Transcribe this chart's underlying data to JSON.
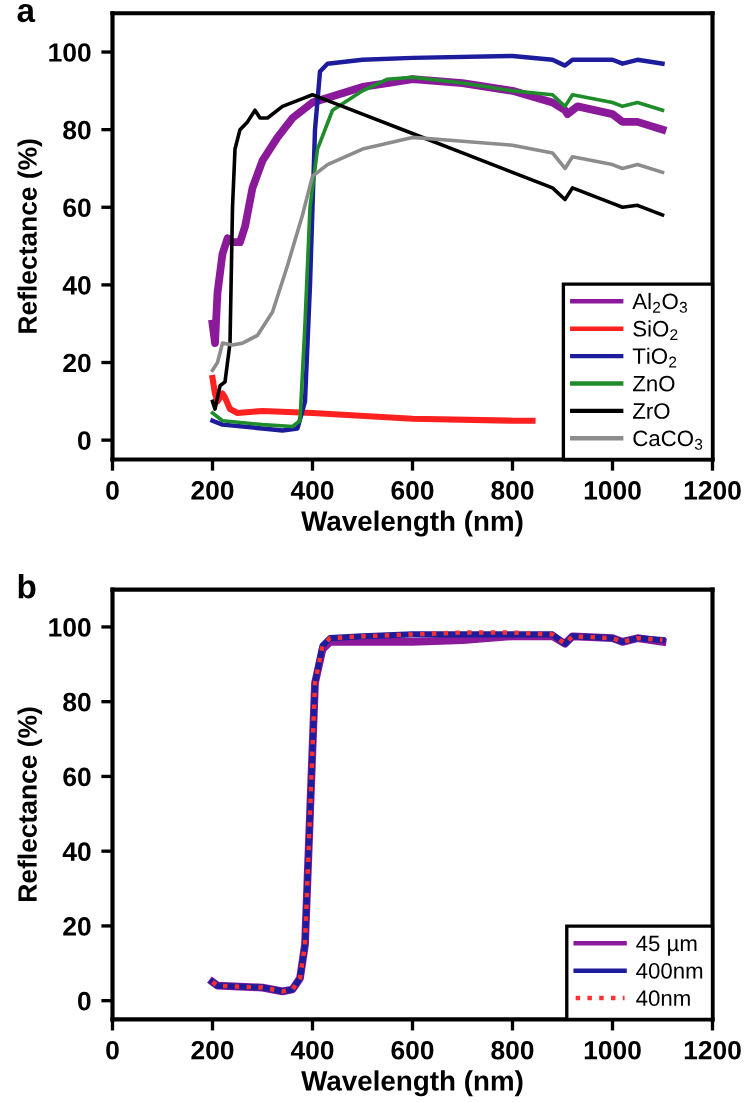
{
  "chart_data": [
    {
      "type": "line",
      "title": "a",
      "xlabel": "Wavelength (nm)",
      "ylabel": "Reflectance (%)",
      "xlim": [
        0,
        1200
      ],
      "ylim": [
        -5,
        110
      ],
      "xticks": [
        0,
        200,
        400,
        600,
        800,
        1000,
        1200
      ],
      "yticks": [
        0,
        20,
        40,
        60,
        80,
        100
      ],
      "grid": false,
      "legend": "bottom right",
      "series": [
        {
          "name": "Al$_{2}$O$_{3}$",
          "color": "#8b1a9b",
          "x": [
            200,
            205,
            210,
            220,
            230,
            240,
            255,
            265,
            280,
            300,
            330,
            360,
            400,
            450,
            500,
            550,
            600,
            700,
            800,
            880,
            905,
            910,
            930,
            1000,
            1020,
            1050,
            1100
          ],
          "values": [
            30,
            25,
            38,
            48,
            52,
            51,
            51,
            55,
            65,
            72,
            78,
            83,
            87,
            89,
            91,
            92,
            93,
            92,
            90,
            87,
            85,
            84,
            86,
            84,
            82,
            82,
            80
          ]
        },
        {
          "name": "SiO$_{2}$",
          "color": "#ff2020",
          "x": [
            200,
            205,
            210,
            220,
            225,
            235,
            250,
            300,
            400,
            600,
            800,
            840
          ],
          "values": [
            16,
            12,
            10,
            12,
            11,
            8,
            7,
            7.5,
            7,
            5.5,
            5,
            5
          ]
        },
        {
          "name": "TiO$_{2}$",
          "color": "#1c1c9c",
          "x": [
            200,
            220,
            300,
            340,
            370,
            385,
            395,
            405,
            415,
            430,
            500,
            600,
            800,
            880,
            905,
            920,
            1000,
            1020,
            1050,
            1100
          ],
          "values": [
            5,
            4,
            3,
            2.5,
            3,
            10,
            40,
            80,
            95,
            97,
            98,
            98.5,
            99,
            98,
            96.5,
            98,
            98,
            97,
            98,
            97
          ]
        },
        {
          "name": "ZnO",
          "color": "#1e8c2a",
          "x": [
            200,
            220,
            300,
            360,
            375,
            385,
            395,
            410,
            440,
            500,
            550,
            600,
            700,
            800,
            880,
            905,
            920,
            1000,
            1020,
            1050,
            1100
          ],
          "values": [
            7,
            5,
            4,
            3.5,
            5,
            30,
            60,
            75,
            85,
            90,
            93,
            93.5,
            92,
            90,
            89,
            86,
            89,
            87,
            86,
            87,
            85
          ]
        },
        {
          "name": "ZrO",
          "color": "#000000",
          "x": [
            200,
            205,
            215,
            225,
            235,
            240,
            245,
            255,
            270,
            285,
            295,
            310,
            340,
            380,
            400,
            420,
            500,
            600,
            700,
            800,
            880,
            905,
            920,
            1000,
            1020,
            1050,
            1100
          ],
          "values": [
            10,
            8,
            14,
            15,
            25,
            60,
            75,
            80,
            82,
            85,
            83,
            83,
            86,
            88,
            89,
            88,
            84,
            79,
            74,
            69,
            65,
            62,
            65,
            61,
            60,
            60.5,
            58
          ]
        },
        {
          "name": "CaCO$_{3}$",
          "color": "#8c8c8c",
          "x": [
            200,
            210,
            220,
            240,
            260,
            290,
            320,
            350,
            380,
            400,
            430,
            500,
            600,
            700,
            800,
            880,
            905,
            920,
            1000,
            1020,
            1050,
            1100
          ],
          "values": [
            18,
            20,
            25,
            24.5,
            25,
            27,
            33,
            45,
            58,
            68,
            71,
            75,
            78,
            77,
            76,
            74,
            70,
            73,
            71,
            70,
            71,
            69
          ]
        }
      ]
    },
    {
      "type": "line",
      "title": "b",
      "xlabel": "Wavelength (nm)",
      "ylabel": "Reflectance (%)",
      "xlim": [
        0,
        1200
      ],
      "ylim": [
        -5,
        110
      ],
      "xticks": [
        0,
        200,
        400,
        600,
        800,
        1000,
        1200
      ],
      "yticks": [
        0,
        20,
        40,
        60,
        80,
        100
      ],
      "grid": false,
      "legend": "bottom right",
      "series": [
        {
          "name": "45 µm",
          "color": "#8b1a9b",
          "line_style": "solid",
          "x": [
            200,
            210,
            300,
            340,
            360,
            375,
            385,
            395,
            405,
            420,
            435,
            500,
            600,
            700,
            800,
            880,
            905,
            920,
            1000,
            1020,
            1050,
            1100
          ],
          "values": [
            5,
            4,
            3.5,
            2.5,
            3,
            6,
            15,
            50,
            85,
            94,
            96,
            96,
            96,
            96.5,
            97.5,
            97.5,
            95.5,
            97.5,
            97,
            96,
            97,
            96
          ]
        },
        {
          "name": "400nm",
          "color": "#1c1c9c",
          "line_style": "solid",
          "x": [
            200,
            210,
            300,
            340,
            360,
            375,
            385,
            395,
            405,
            420,
            435,
            500,
            600,
            700,
            800,
            880,
            905,
            920,
            1000,
            1020,
            1050,
            1100
          ],
          "values": [
            5,
            4,
            3.5,
            2.5,
            3,
            6,
            15,
            50,
            85,
            95,
            97,
            97.5,
            98,
            98,
            98,
            98,
            95.5,
            97.5,
            97,
            96,
            97,
            96.5
          ]
        },
        {
          "name": "40nm",
          "color": "#ff3030",
          "line_style": "dotted",
          "x": [
            200,
            210,
            300,
            340,
            360,
            375,
            385,
            395,
            405,
            420,
            435,
            500,
            600,
            700,
            800,
            880,
            905,
            920,
            1000,
            1020,
            1050,
            1100
          ],
          "values": [
            5,
            4,
            3.5,
            2.5,
            3,
            6,
            15,
            50,
            85,
            95,
            97,
            97.5,
            98,
            98.5,
            98.5,
            98,
            95.5,
            97.5,
            97,
            96,
            97,
            96.5
          ]
        }
      ]
    }
  ]
}
